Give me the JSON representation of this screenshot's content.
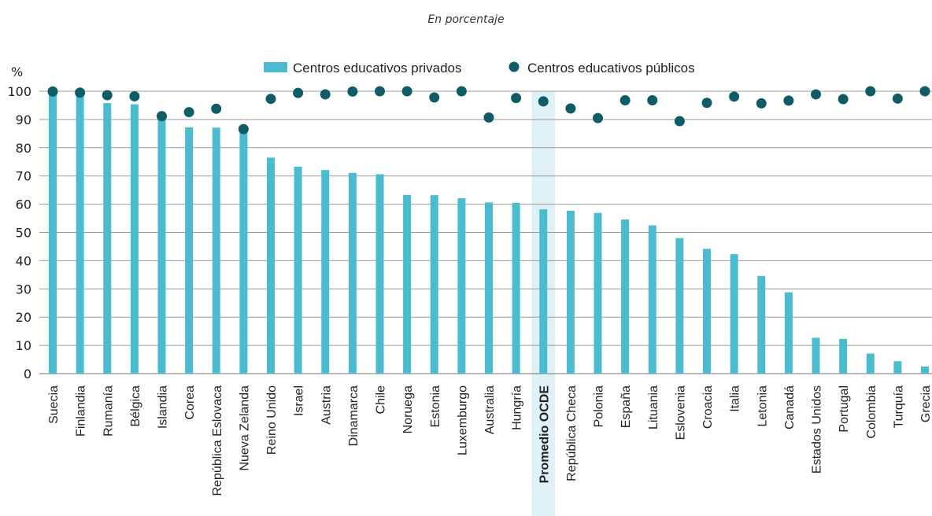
{
  "chart_data": {
    "type": "bar",
    "subtitle": "En porcentaje",
    "ylabel": "%",
    "ylim": [
      0,
      100
    ],
    "yticks": [
      0,
      10,
      20,
      30,
      40,
      50,
      60,
      70,
      80,
      90,
      100
    ],
    "grid": true,
    "legend_placement": "top-center",
    "highlight_category": "Promedio OCDE",
    "colors": {
      "bar": "#4bbccf",
      "dot": "#0d5c66",
      "highlight": "#dff1f6",
      "grid": "#9b9b9b"
    },
    "categories": [
      "Suecia",
      "Finlandia",
      "Rumanía",
      "Bélgica",
      "Islandia",
      "Corea",
      "República Eslovaca",
      "Nueva Zelanda",
      "Reino Unido",
      "Israel",
      "Austria",
      "Dinamarca",
      "Chile",
      "Noruega",
      "Estonia",
      "Luxemburgo",
      "Australia",
      "Hungría",
      "Promedio OCDE",
      "República Checa",
      "Polonia",
      "España",
      "Lituania",
      "Eslovenia",
      "Croacia",
      "Italia",
      "Letonia",
      "Canadá",
      "Estados Unidos",
      "Portugal",
      "Colombia",
      "Turquía",
      "Grecia"
    ],
    "series": [
      {
        "name": "Centros educativos privados",
        "kind": "bar",
        "values": [
          99.6,
          99.4,
          95.8,
          95.4,
          91.0,
          87.2,
          87.1,
          86.4,
          76.5,
          73.3,
          72.1,
          71.1,
          70.6,
          63.3,
          63.2,
          62.1,
          60.6,
          60.5,
          58.2,
          57.7,
          56.9,
          54.6,
          52.5,
          48.0,
          44.2,
          42.3,
          34.6,
          28.8,
          12.7,
          12.3,
          7.1,
          4.4,
          2.5
        ]
      },
      {
        "name": "Centros educativos públicos",
        "kind": "dot",
        "values": [
          99.9,
          99.5,
          98.6,
          98.2,
          91.2,
          92.6,
          93.8,
          86.6,
          97.3,
          99.4,
          98.9,
          99.9,
          100.0,
          100.0,
          97.8,
          100.0,
          90.7,
          97.6,
          96.4,
          93.9,
          90.5,
          96.8,
          96.8,
          89.4,
          95.9,
          98.1,
          95.7,
          96.7,
          98.9,
          97.2,
          100.0,
          97.4,
          100.0
        ]
      }
    ]
  }
}
